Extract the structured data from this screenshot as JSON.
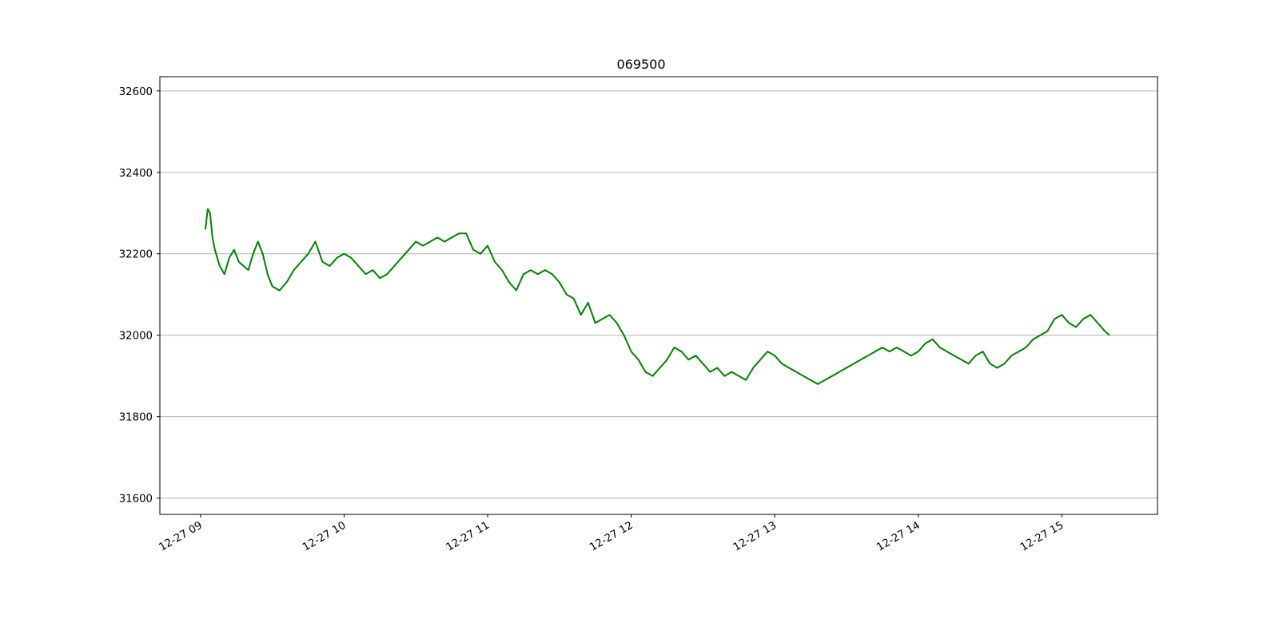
{
  "chart_data": {
    "type": "line",
    "title": "069500",
    "xlabel": "",
    "ylabel": "",
    "grid": "horizontal",
    "legend": "none",
    "line_color": "#008000",
    "x_unit": "time",
    "x_ticks": [
      "12-27 09",
      "12-27 10",
      "12-27 11",
      "12-27 12",
      "12-27 13",
      "12-27 14",
      "12-27 15"
    ],
    "y_ticks": [
      "31600",
      "31800",
      "32000",
      "32200",
      "32400",
      "32600"
    ],
    "ylim": [
      31560,
      32635
    ],
    "xlim": [
      "12-27 08:43",
      "12-27 15:40"
    ],
    "series": [
      {
        "x": [
          "09:02",
          "09:03",
          "09:04",
          "09:05",
          "09:06",
          "09:07",
          "09:08",
          "09:09",
          "09:10",
          "09:12",
          "09:14",
          "09:16",
          "09:18",
          "09:20",
          "09:22",
          "09:24",
          "09:26",
          "09:28",
          "09:30",
          "09:33",
          "09:36",
          "09:39",
          "09:42",
          "09:45",
          "09:48",
          "09:51",
          "09:54",
          "09:57",
          "10:00",
          "10:03",
          "10:06",
          "10:09",
          "10:12",
          "10:15",
          "10:18",
          "10:21",
          "10:24",
          "10:27",
          "10:30",
          "10:33",
          "10:36",
          "10:39",
          "10:42",
          "10:45",
          "10:48",
          "10:51",
          "10:54",
          "10:57",
          "11:00",
          "11:03",
          "11:06",
          "11:09",
          "11:12",
          "11:15",
          "11:18",
          "11:21",
          "11:24",
          "11:27",
          "11:30",
          "11:33",
          "11:36",
          "11:39",
          "11:42",
          "11:45",
          "11:48",
          "11:51",
          "11:54",
          "11:57",
          "12:00",
          "12:03",
          "12:06",
          "12:09",
          "12:12",
          "12:15",
          "12:18",
          "12:21",
          "12:24",
          "12:27",
          "12:30",
          "12:33",
          "12:36",
          "12:39",
          "12:42",
          "12:45",
          "12:48",
          "12:51",
          "12:54",
          "12:57",
          "13:00",
          "13:03",
          "13:06",
          "13:09",
          "13:12",
          "13:15",
          "13:18",
          "13:21",
          "13:24",
          "13:27",
          "13:30",
          "13:33",
          "13:36",
          "13:39",
          "13:42",
          "13:45",
          "13:48",
          "13:51",
          "13:54",
          "13:57",
          "14:00",
          "14:03",
          "14:06",
          "14:09",
          "14:12",
          "14:15",
          "14:18",
          "14:21",
          "14:24",
          "14:27",
          "14:30",
          "14:33",
          "14:36",
          "14:39",
          "14:42",
          "14:45",
          "14:48",
          "14:51",
          "14:54",
          "14:57",
          "15:00",
          "15:03",
          "15:06",
          "15:09",
          "15:12",
          "15:15",
          "15:18",
          "15:20"
        ],
        "values": [
          32260,
          32310,
          32300,
          32240,
          32210,
          32190,
          32170,
          32160,
          32150,
          32190,
          32210,
          32180,
          32170,
          32160,
          32200,
          32230,
          32200,
          32150,
          32120,
          32110,
          32130,
          32160,
          32180,
          32200,
          32230,
          32180,
          32170,
          32190,
          32200,
          32190,
          32170,
          32150,
          32160,
          32140,
          32150,
          32170,
          32190,
          32210,
          32230,
          32220,
          32230,
          32240,
          32230,
          32240,
          32250,
          32250,
          32210,
          32200,
          32220,
          32180,
          32160,
          32130,
          32110,
          32150,
          32160,
          32150,
          32160,
          32150,
          32130,
          32100,
          32090,
          32050,
          32080,
          32030,
          32040,
          32050,
          32030,
          32000,
          31960,
          31940,
          31910,
          31900,
          31920,
          31940,
          31970,
          31960,
          31940,
          31950,
          31930,
          31910,
          31920,
          31900,
          31910,
          31900,
          31890,
          31920,
          31940,
          31960,
          31950,
          31930,
          31920,
          31910,
          31900,
          31890,
          31880,
          31890,
          31900,
          31910,
          31920,
          31930,
          31940,
          31950,
          31960,
          31970,
          31960,
          31970,
          31960,
          31950,
          31960,
          31980,
          31990,
          31970,
          31960,
          31950,
          31940,
          31930,
          31950,
          31960,
          31930,
          31920,
          31930,
          31950,
          31960,
          31970,
          31990,
          32000,
          32010,
          32040,
          32050,
          32030,
          32020,
          32040,
          32050,
          32030,
          32010,
          32000
        ]
      }
    ]
  }
}
